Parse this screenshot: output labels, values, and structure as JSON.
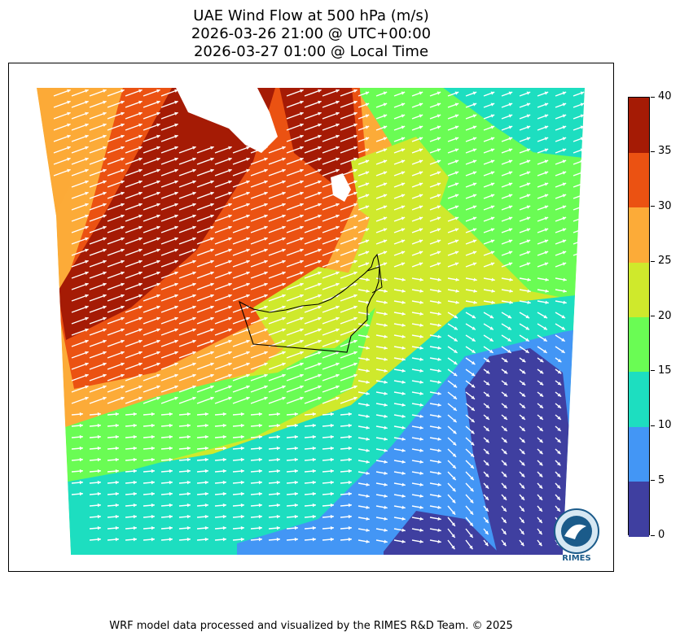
{
  "title": {
    "line1": "UAE Wind Flow at 500 hPa (m/s)",
    "line2": "2026-03-26 21:00 @ UTC+00:00",
    "line3": "2026-03-27 01:00 @ Local Time"
  },
  "colorbar": {
    "ticks": [
      "0",
      "5",
      "10",
      "15",
      "20",
      "25",
      "30",
      "35",
      "40"
    ],
    "colors": [
      "#3f3fa0",
      "#4396f5",
      "#1ddec0",
      "#6afc54",
      "#cfe92c",
      "#fcab38",
      "#eb5212",
      "#a51b05"
    ]
  },
  "map": {
    "region": "United Arab Emirates",
    "variable": "wind speed and direction at 500 hPa",
    "logo_text": "RIMES"
  },
  "footer": "WRF model data processed and visualized by the RIMES R&D Team. © 2025"
}
